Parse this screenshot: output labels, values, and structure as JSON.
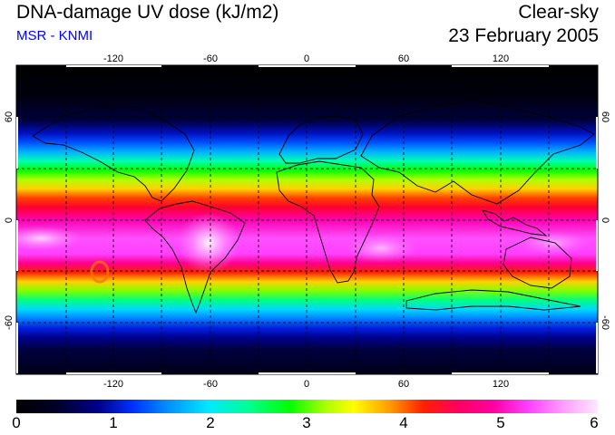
{
  "header": {
    "title": "DNA-damage UV dose (kJ/m2)",
    "source": "MSR - KNMI",
    "condition": "Clear-sky",
    "date": "23 February 2005"
  },
  "map": {
    "lon_ticks": [
      "-120",
      "-60",
      "0",
      "60",
      "120"
    ],
    "lat_ticks": [
      "60",
      "0",
      "-60"
    ],
    "lon_range": [
      -180,
      180
    ],
    "lat_range": [
      -90,
      90
    ],
    "gridlines": "dashed, every 30 degrees",
    "colors": {
      "polar": "#000000",
      "high_lat": "#0040ff",
      "mid_lat": "#00ff00",
      "subtropics": "#ff2000",
      "tropics": "#ff40ff",
      "peak": "#ffe8ff",
      "frame": "#000000"
    }
  },
  "colorbar": {
    "labels": [
      "0",
      "1",
      "2",
      "3",
      "4",
      "5",
      "6"
    ],
    "range": [
      0,
      6
    ],
    "stops": [
      "#000000",
      "#000088",
      "#0090ff",
      "#00e8ff",
      "#00ff00",
      "#ffff00",
      "#ff2000",
      "#ff00a0",
      "#ff40ff",
      "#ffe8ff"
    ]
  }
}
